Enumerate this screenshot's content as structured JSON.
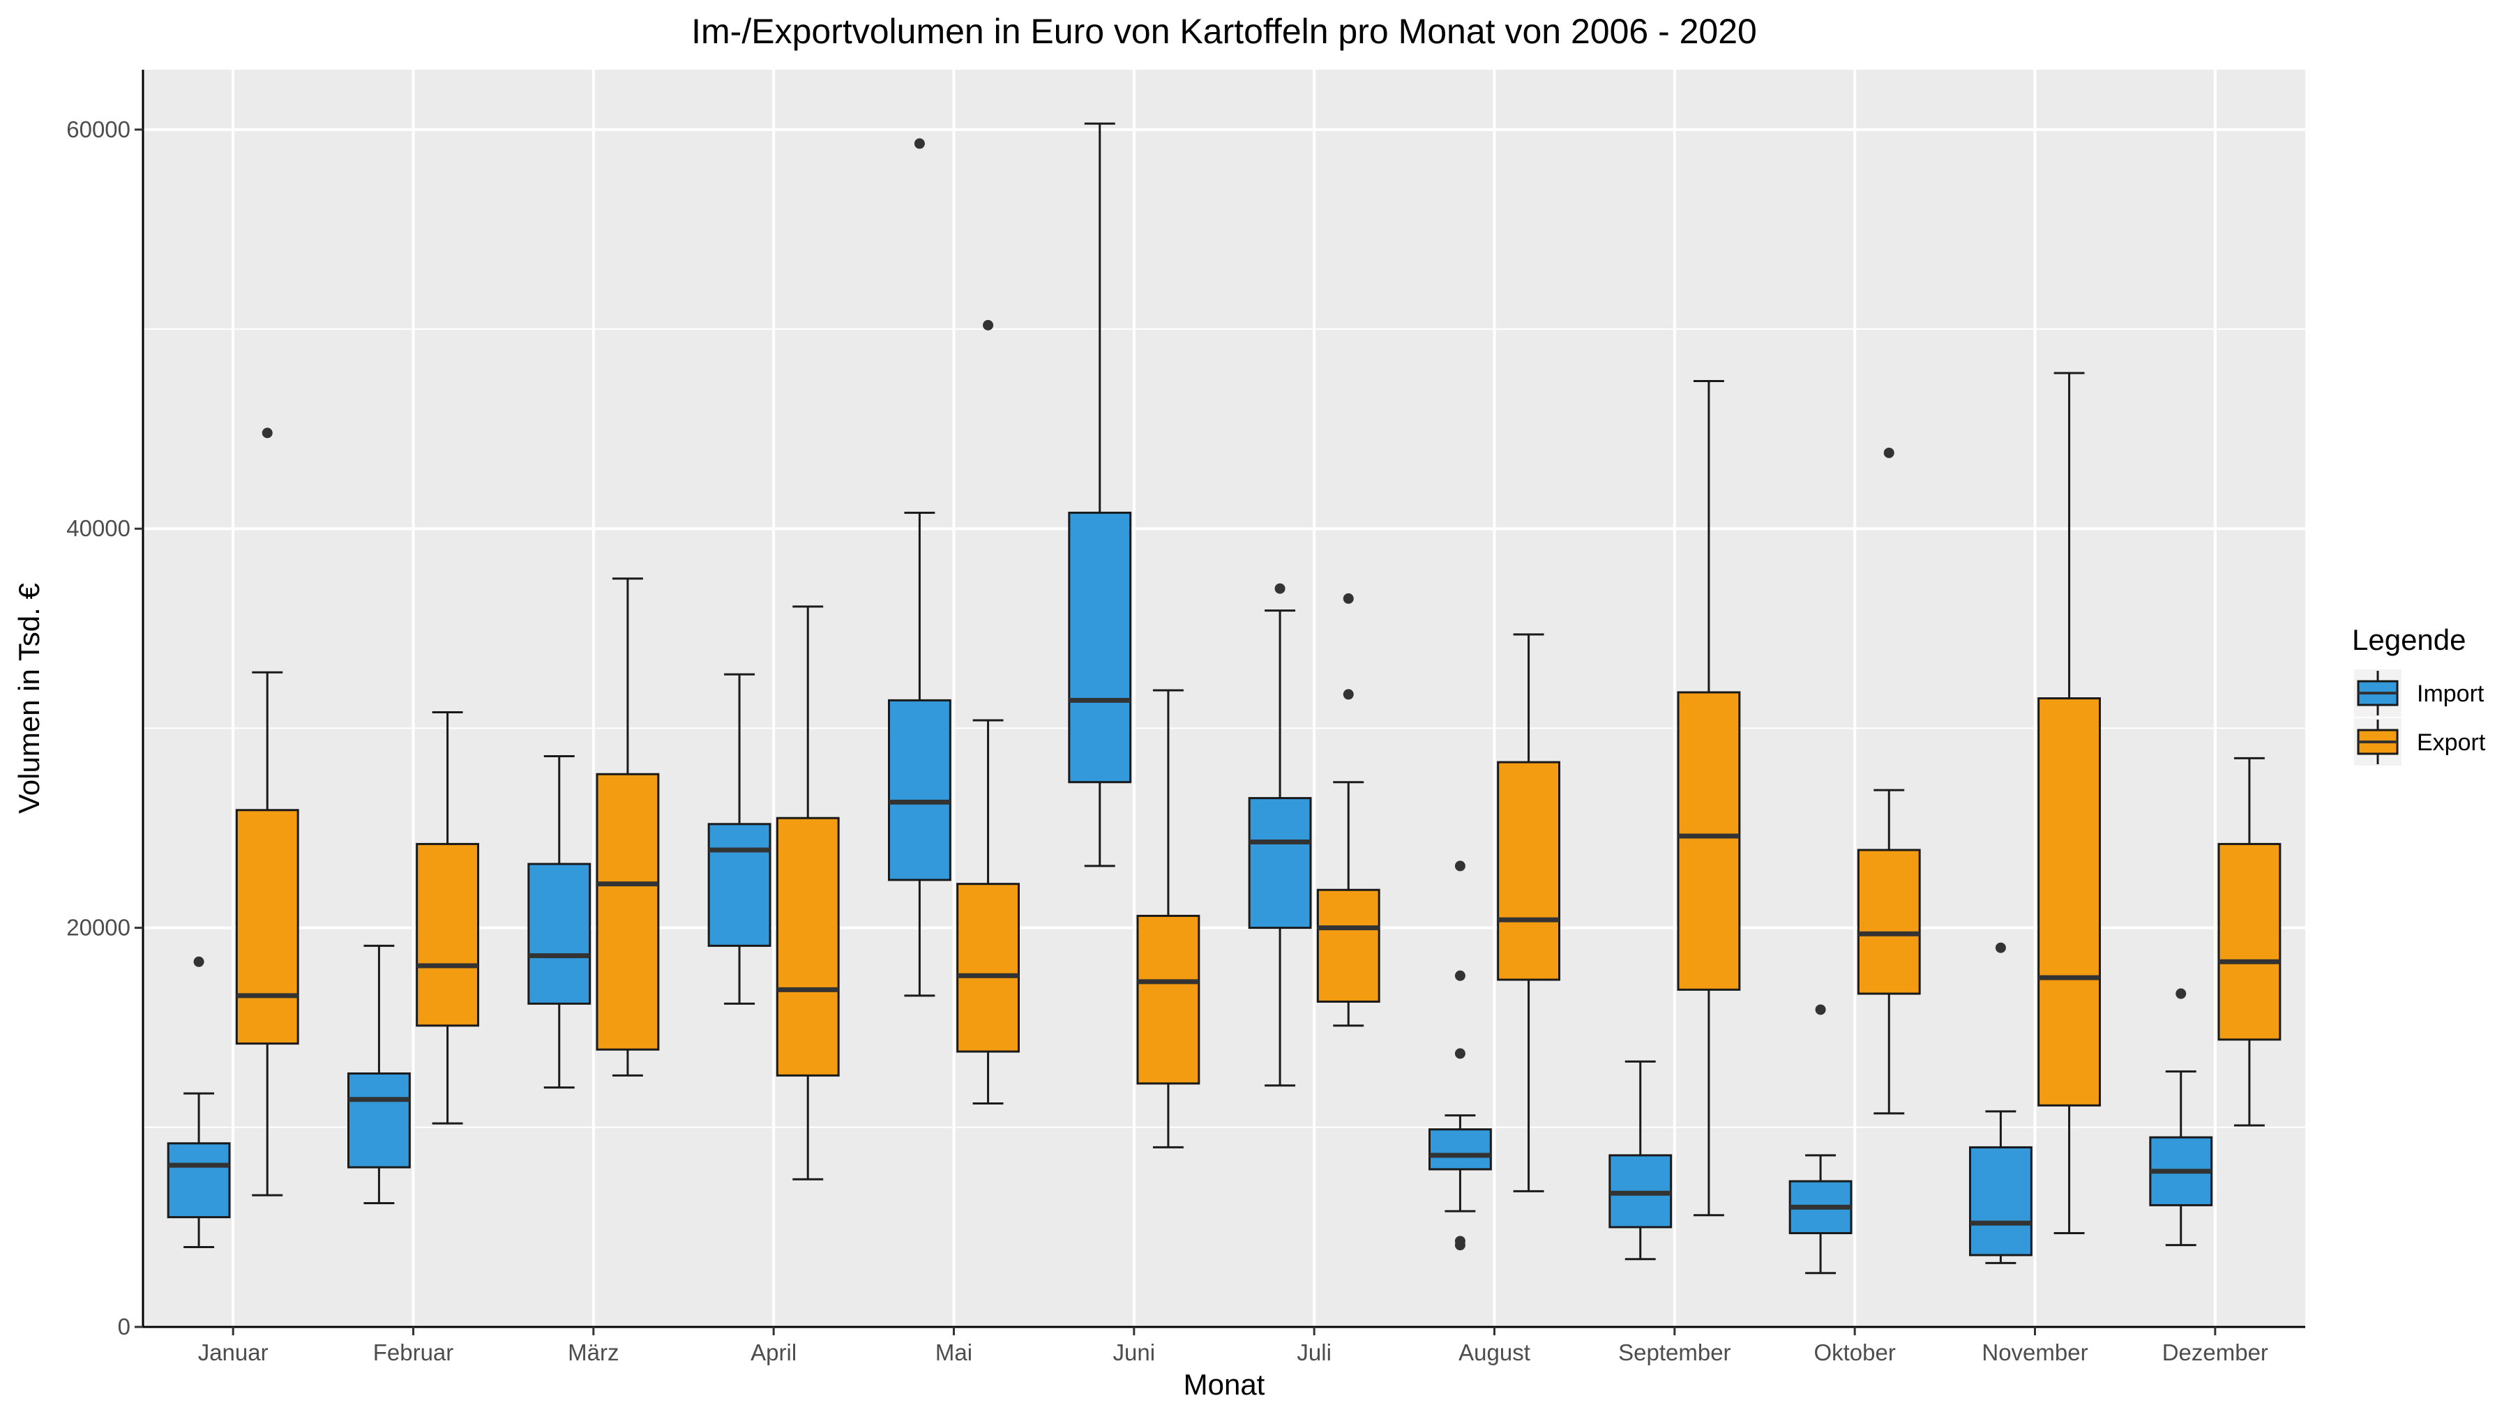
{
  "chart_data": {
    "type": "boxplot",
    "title": "Im-/Exportvolumen in Euro von Kartoffeln pro Monat von 2006 - 2020",
    "xlabel": "Monat",
    "ylabel": "Volumen in Tsd. €",
    "ylim": [
      0,
      63000
    ],
    "yticks": [
      0,
      20000,
      40000,
      60000
    ],
    "ytick_labels": [
      "0",
      "20000",
      "40000",
      "60000"
    ],
    "grid": true,
    "legend": {
      "title": "Legende",
      "position": "right"
    },
    "categories": [
      "Januar",
      "Februar",
      "März",
      "April",
      "Mai",
      "Juni",
      "Juli",
      "August",
      "September",
      "Oktober",
      "November",
      "Dezember"
    ],
    "series": [
      {
        "name": "Import",
        "color": "#3399db",
        "boxes": [
          {
            "min": 4000,
            "q1": 5500,
            "median": 8100,
            "q3": 9200,
            "max": 11700,
            "outliers": [
              18300
            ]
          },
          {
            "min": 6200,
            "q1": 8000,
            "median": 11400,
            "q3": 12700,
            "max": 19100,
            "outliers": []
          },
          {
            "min": 12000,
            "q1": 16200,
            "median": 18600,
            "q3": 23200,
            "max": 28600,
            "outliers": []
          },
          {
            "min": 16200,
            "q1": 19100,
            "median": 23900,
            "q3": 25200,
            "max": 32700,
            "outliers": []
          },
          {
            "min": 16600,
            "q1": 22400,
            "median": 26300,
            "q3": 31400,
            "max": 40800,
            "outliers": [
              59300
            ]
          },
          {
            "min": 23100,
            "q1": 27300,
            "median": 31400,
            "q3": 40800,
            "max": 60300,
            "outliers": []
          },
          {
            "min": 12100,
            "q1": 20000,
            "median": 24300,
            "q3": 26500,
            "max": 35900,
            "outliers": [
              37000
            ]
          },
          {
            "min": 5800,
            "q1": 7900,
            "median": 8600,
            "q3": 9900,
            "max": 10600,
            "outliers": [
              23100,
              17600,
              13700,
              4300,
              4100
            ]
          },
          {
            "min": 3400,
            "q1": 5000,
            "median": 6700,
            "q3": 8600,
            "max": 13300,
            "outliers": []
          },
          {
            "min": 2700,
            "q1": 4700,
            "median": 6000,
            "q3": 7300,
            "max": 8600,
            "outliers": [
              15900
            ]
          },
          {
            "min": 3200,
            "q1": 3600,
            "median": 5200,
            "q3": 9000,
            "max": 10800,
            "outliers": [
              19000
            ]
          },
          {
            "min": 4100,
            "q1": 6100,
            "median": 7800,
            "q3": 9500,
            "max": 12800,
            "outliers": [
              16700
            ]
          }
        ]
      },
      {
        "name": "Export",
        "color": "#f39c12",
        "boxes": [
          {
            "min": 6600,
            "q1": 14200,
            "median": 16600,
            "q3": 25900,
            "max": 32800,
            "outliers": [
              44800
            ]
          },
          {
            "min": 10200,
            "q1": 15100,
            "median": 18100,
            "q3": 24200,
            "max": 30800,
            "outliers": []
          },
          {
            "min": 12600,
            "q1": 13900,
            "median": 22200,
            "q3": 27700,
            "max": 37500,
            "outliers": []
          },
          {
            "min": 7400,
            "q1": 12600,
            "median": 16900,
            "q3": 25500,
            "max": 36100,
            "outliers": []
          },
          {
            "min": 11200,
            "q1": 13800,
            "median": 17600,
            "q3": 22200,
            "max": 30400,
            "outliers": [
              50200
            ]
          },
          {
            "min": 9000,
            "q1": 12200,
            "median": 17300,
            "q3": 20600,
            "max": 31900,
            "outliers": []
          },
          {
            "min": 15100,
            "q1": 16300,
            "median": 20000,
            "q3": 21900,
            "max": 27300,
            "outliers": [
              36500,
              31700
            ]
          },
          {
            "min": 6800,
            "q1": 17400,
            "median": 20400,
            "q3": 28300,
            "max": 34700,
            "outliers": []
          },
          {
            "min": 5600,
            "q1": 16900,
            "median": 24600,
            "q3": 31800,
            "max": 47400,
            "outliers": []
          },
          {
            "min": 10700,
            "q1": 16700,
            "median": 19700,
            "q3": 23900,
            "max": 26900,
            "outliers": [
              43800
            ]
          },
          {
            "min": 4700,
            "q1": 11100,
            "median": 17500,
            "q3": 31500,
            "max": 47800,
            "outliers": []
          },
          {
            "min": 10100,
            "q1": 14400,
            "median": 18300,
            "q3": 24200,
            "max": 28500,
            "outliers": []
          }
        ]
      }
    ]
  }
}
